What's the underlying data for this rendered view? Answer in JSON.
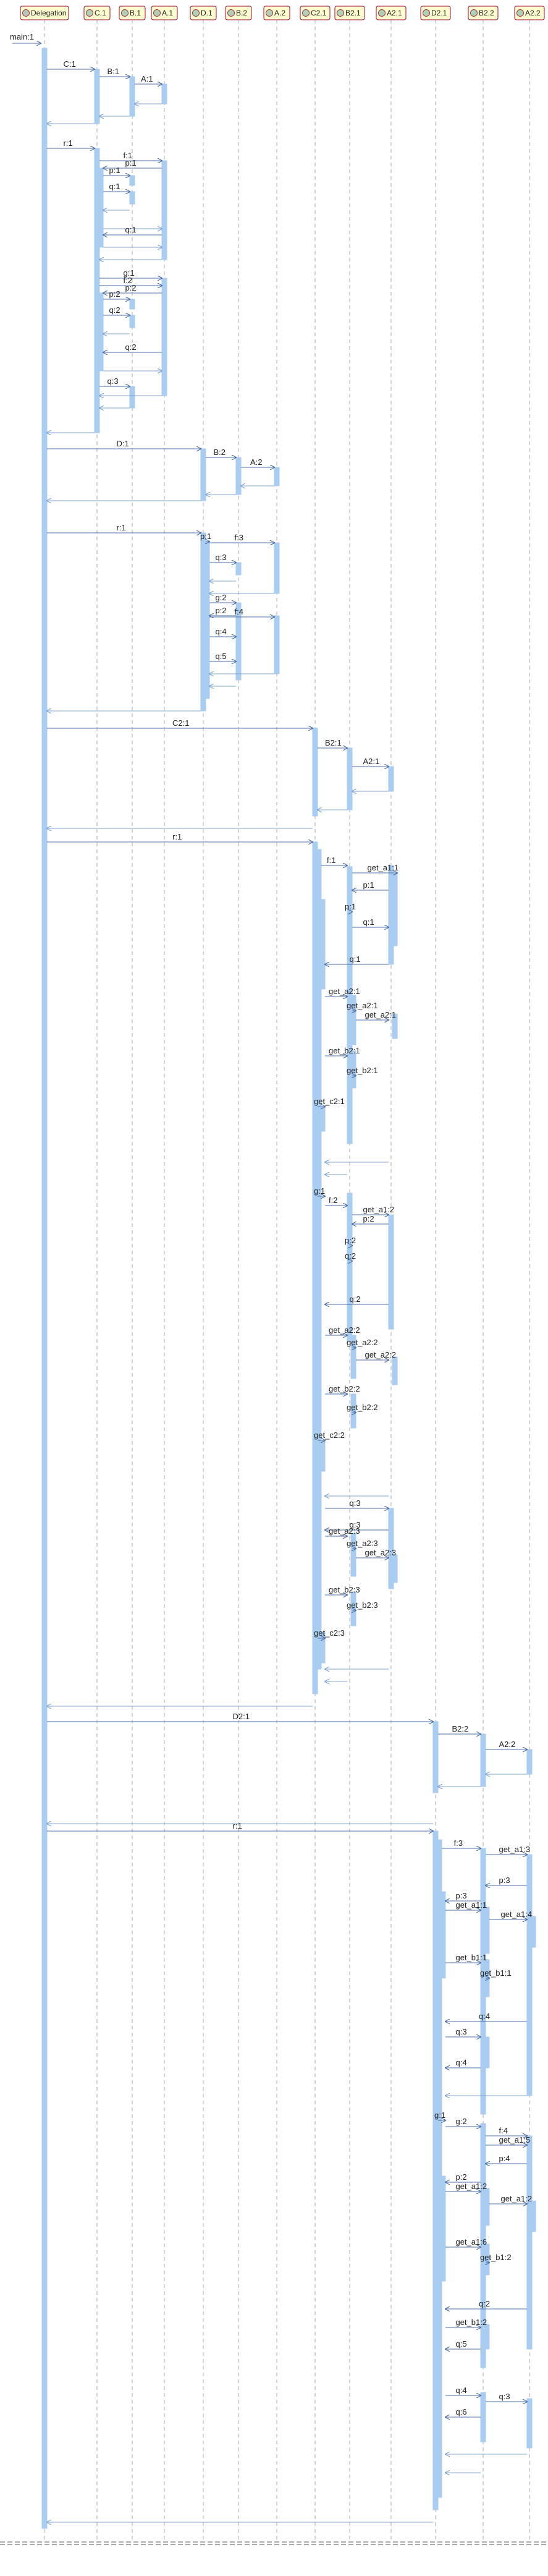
{
  "diagram": {
    "type": "sequence-diagram",
    "participants": [
      {
        "id": "Delegation",
        "label": "Delegation",
        "icon": "object-icon"
      },
      {
        "id": "C1",
        "label": "C.1",
        "icon": "class-icon"
      },
      {
        "id": "B1",
        "label": "B.1",
        "icon": "class-icon"
      },
      {
        "id": "A1",
        "label": "A.1",
        "icon": "class-icon"
      },
      {
        "id": "D1",
        "label": "D.1",
        "icon": "class-icon"
      },
      {
        "id": "B2",
        "label": "B.2",
        "icon": "class-icon"
      },
      {
        "id": "A2",
        "label": "A.2",
        "icon": "class-icon"
      },
      {
        "id": "C21",
        "label": "C2.1",
        "icon": "class-icon"
      },
      {
        "id": "B21",
        "label": "B2.1",
        "icon": "class-icon"
      },
      {
        "id": "A21",
        "label": "A2.1",
        "icon": "class-icon"
      },
      {
        "id": "D21",
        "label": "D2.1",
        "icon": "class-icon"
      },
      {
        "id": "B22",
        "label": "B2.2",
        "icon": "class-icon"
      },
      {
        "id": "A22",
        "label": "A2.2",
        "icon": "class-icon"
      }
    ],
    "messages": [
      {
        "label": "main:1"
      },
      {
        "label": "C:1"
      },
      {
        "label": "B:1"
      },
      {
        "label": "A:1"
      },
      {
        "label": "r:1"
      },
      {
        "label": "f:1"
      },
      {
        "label": "p:1"
      },
      {
        "label": "p:1"
      },
      {
        "label": "q:1"
      },
      {
        "label": "q:1"
      },
      {
        "label": "g:1"
      },
      {
        "label": "f:2"
      },
      {
        "label": "p:2"
      },
      {
        "label": "p:2"
      },
      {
        "label": "q:2"
      },
      {
        "label": "q:2"
      },
      {
        "label": "q:3"
      },
      {
        "label": "D:1"
      },
      {
        "label": "B:2"
      },
      {
        "label": "A:2"
      },
      {
        "label": "r:1"
      },
      {
        "label": "p:1"
      },
      {
        "label": "f:3"
      },
      {
        "label": "q:3"
      },
      {
        "label": "g:2"
      },
      {
        "label": "p:2"
      },
      {
        "label": "f:4"
      },
      {
        "label": "q:4"
      },
      {
        "label": "q:5"
      },
      {
        "label": "C2:1"
      },
      {
        "label": "B2:1"
      },
      {
        "label": "A2:1"
      },
      {
        "label": "r:1"
      },
      {
        "label": "f:1"
      },
      {
        "label": "get_a1:1"
      },
      {
        "label": "p:1"
      },
      {
        "label": "p:1"
      },
      {
        "label": "q:1"
      },
      {
        "label": "q:1"
      },
      {
        "label": "get_a2:1"
      },
      {
        "label": "get_a2:1"
      },
      {
        "label": "get_a2:1"
      },
      {
        "label": "get_b2:1"
      },
      {
        "label": "get_b2:1"
      },
      {
        "label": "get_c2:1"
      },
      {
        "label": "g:1"
      },
      {
        "label": "f:2"
      },
      {
        "label": "get_a1:2"
      },
      {
        "label": "p:2"
      },
      {
        "label": "p:2"
      },
      {
        "label": "q:2"
      },
      {
        "label": "q:2"
      },
      {
        "label": "get_a2:2"
      },
      {
        "label": "get_a2:2"
      },
      {
        "label": "get_a2:2"
      },
      {
        "label": "get_b2:2"
      },
      {
        "label": "get_b2:2"
      },
      {
        "label": "get_c2:2"
      },
      {
        "label": "q:3"
      },
      {
        "label": "q:3"
      },
      {
        "label": "get_a2:3"
      },
      {
        "label": "get_a2:3"
      },
      {
        "label": "get_a2:3"
      },
      {
        "label": "get_b2:3"
      },
      {
        "label": "get_b2:3"
      },
      {
        "label": "get_c2:3"
      },
      {
        "label": "D2:1"
      },
      {
        "label": "B2:2"
      },
      {
        "label": "A2:2"
      },
      {
        "label": "r:1"
      },
      {
        "label": "f:3"
      },
      {
        "label": "get_a1:3"
      },
      {
        "label": "p:3"
      },
      {
        "label": "p:3"
      },
      {
        "label": "get_a1:1"
      },
      {
        "label": "get_a1:4"
      },
      {
        "label": "get_b1:1"
      },
      {
        "label": "get_b1:1"
      },
      {
        "label": "q:3"
      },
      {
        "label": "q:4"
      },
      {
        "label": "q:4"
      },
      {
        "label": "g:1"
      },
      {
        "label": "g:2"
      },
      {
        "label": "f:4"
      },
      {
        "label": "get_a1:5"
      },
      {
        "label": "p:4"
      },
      {
        "label": "p:2"
      },
      {
        "label": "get_a1:2"
      },
      {
        "label": "get_a1:2"
      },
      {
        "label": "get_a1:6"
      },
      {
        "label": "get_b1:2"
      },
      {
        "label": "get_b1:2"
      },
      {
        "label": "q:2"
      },
      {
        "label": "q:5"
      },
      {
        "label": "q:4"
      },
      {
        "label": "q:3"
      },
      {
        "label": "q:6"
      },
      {
        "label": "q:5"
      }
    ],
    "colors": {
      "header_fill": "#FEFECE",
      "header_border": "#A80036",
      "activation": "#A9CCF1",
      "arrow": "#4A6FA8",
      "lifeline": "#A8A8A8",
      "object_icon_fill": "#ADD1B2",
      "class_icon_fill": "#ADD1B2"
    }
  }
}
